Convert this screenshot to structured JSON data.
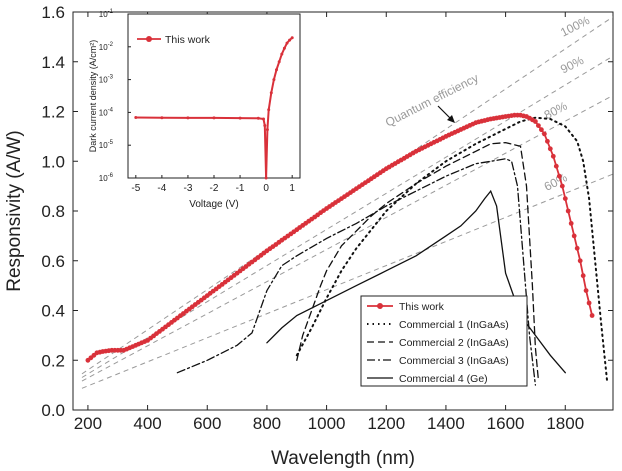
{
  "chart_data": [
    {
      "type": "line",
      "xlabel": "Wavelength (nm)",
      "ylabel": "Responsivity (A/W)",
      "xlim": [
        150,
        1960
      ],
      "ylim": [
        0,
        1.6
      ],
      "x_ticks": [
        200,
        400,
        600,
        800,
        1000,
        1200,
        1400,
        1600,
        1800
      ],
      "y_ticks": [
        0.0,
        0.2,
        0.4,
        0.6,
        0.8,
        1.0,
        1.2,
        1.4,
        1.6
      ],
      "legend_position": "bottom-right",
      "series": [
        {
          "name": "This work",
          "style": "solid-with-circles",
          "color": "#d9313a",
          "x": [
            200,
            210,
            230,
            250,
            280,
            320,
            350,
            380,
            400,
            450,
            500,
            600,
            700,
            800,
            900,
            1000,
            1100,
            1200,
            1300,
            1400,
            1500,
            1550,
            1600,
            1630,
            1650,
            1670,
            1700,
            1730,
            1760,
            1790,
            1820,
            1850,
            1870,
            1890
          ],
          "y": [
            0.2,
            0.21,
            0.23,
            0.235,
            0.24,
            0.24,
            0.255,
            0.27,
            0.28,
            0.325,
            0.37,
            0.46,
            0.55,
            0.64,
            0.725,
            0.81,
            0.89,
            0.97,
            1.04,
            1.1,
            1.155,
            1.17,
            1.18,
            1.185,
            1.185,
            1.18,
            1.16,
            1.11,
            1.02,
            0.9,
            0.75,
            0.6,
            0.48,
            0.38
          ]
        },
        {
          "name": "Commercial 1 (InGaAs)",
          "style": "dotted",
          "color": "#111111",
          "x": [
            900,
            950,
            1000,
            1050,
            1100,
            1200,
            1300,
            1400,
            1500,
            1600,
            1650,
            1700,
            1750,
            1800,
            1840,
            1860,
            1880,
            1900,
            1920,
            1940
          ],
          "y": [
            0.22,
            0.33,
            0.45,
            0.56,
            0.65,
            0.8,
            0.91,
            1.0,
            1.07,
            1.13,
            1.16,
            1.175,
            1.17,
            1.14,
            1.08,
            1.0,
            0.85,
            0.6,
            0.35,
            0.12
          ]
        },
        {
          "name": "Commercial 2 (InGaAs)",
          "style": "dashed",
          "color": "#111111",
          "x": [
            900,
            920,
            950,
            980,
            1000,
            1050,
            1100,
            1150,
            1200,
            1300,
            1400,
            1500,
            1550,
            1600,
            1650,
            1670,
            1690,
            1700,
            1710
          ],
          "y": [
            0.2,
            0.3,
            0.4,
            0.5,
            0.56,
            0.66,
            0.72,
            0.78,
            0.83,
            0.91,
            0.98,
            1.04,
            1.07,
            1.075,
            1.06,
            0.9,
            0.5,
            0.25,
            0.12
          ]
        },
        {
          "name": "Commercial 3 (InGaAs)",
          "style": "dashdot",
          "color": "#111111",
          "x": [
            500,
            600,
            700,
            750,
            800,
            850,
            900,
            1000,
            1100,
            1200,
            1300,
            1400,
            1500,
            1550,
            1600,
            1620,
            1640,
            1660,
            1680,
            1700
          ],
          "y": [
            0.15,
            0.2,
            0.26,
            0.31,
            0.48,
            0.58,
            0.62,
            0.69,
            0.75,
            0.82,
            0.88,
            0.94,
            0.99,
            1.0,
            1.01,
            1.0,
            0.9,
            0.6,
            0.3,
            0.1
          ]
        },
        {
          "name": "Commercial 4 (Ge)",
          "style": "solid",
          "color": "#111111",
          "x": [
            800,
            850,
            900,
            1000,
            1100,
            1200,
            1300,
            1400,
            1450,
            1500,
            1530,
            1550,
            1570,
            1600,
            1650,
            1700,
            1750,
            1800
          ],
          "y": [
            0.27,
            0.33,
            0.38,
            0.44,
            0.5,
            0.56,
            0.62,
            0.7,
            0.74,
            0.8,
            0.85,
            0.88,
            0.82,
            0.55,
            0.38,
            0.3,
            0.22,
            0.15
          ]
        }
      ],
      "reference_lines": [
        {
          "label": "100%",
          "efficiency": 1.0
        },
        {
          "label": "90%",
          "efficiency": 0.9
        },
        {
          "label": "80%",
          "efficiency": 0.8
        },
        {
          "label": "60%",
          "efficiency": 0.6
        }
      ],
      "annotation": "Quantum efficiency"
    },
    {
      "type": "line",
      "xlabel": "Voltage (V)",
      "ylabel": "Dark current density (A/cm²)",
      "scale_y": "log",
      "xlim": [
        -5.3,
        1.3
      ],
      "ylim": [
        1e-06,
        0.1
      ],
      "x_ticks": [
        -5,
        -4,
        -3,
        -2,
        -1,
        0,
        1
      ],
      "y_ticks_exponents": [
        -6,
        -5,
        -4,
        -3,
        -2,
        -1
      ],
      "y_tick_base": "10",
      "legend_position": "top-left",
      "series": [
        {
          "name": "This work",
          "color": "#d9313a",
          "x": [
            -5,
            -4,
            -3,
            -2,
            -1,
            -0.3,
            -0.1,
            -0.05,
            0,
            0.05,
            0.1,
            0.2,
            0.3,
            0.4,
            0.5,
            0.6,
            0.7,
            0.8,
            0.9,
            1.0
          ],
          "y": [
            7e-05,
            6.9e-05,
            6.8e-05,
            6.8e-05,
            6.7e-05,
            6.6e-05,
            6.3e-05,
            4e-05,
            1e-06,
            3e-05,
            0.00012,
            0.0004,
            0.001,
            0.002,
            0.0035,
            0.006,
            0.009,
            0.013,
            0.016,
            0.019
          ]
        }
      ]
    }
  ]
}
